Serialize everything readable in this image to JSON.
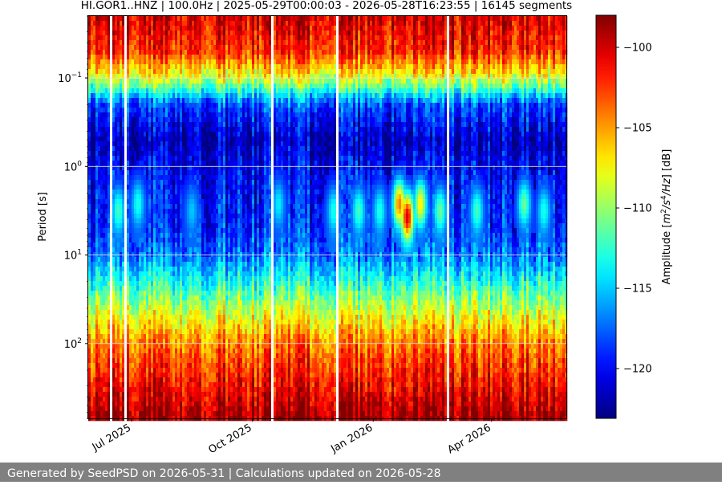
{
  "chart_data": {
    "type": "heatmap",
    "title": "HI.GOR1..HNZ | 100.0Hz | 2025-05-29T00:00:03 - 2026-05-28T16:23:55 | 16145 segments",
    "ylabel": "Period [s]",
    "y_scale": "log",
    "y_inverted": true,
    "ylim": [
      0.02,
      700
    ],
    "x_range": [
      "2025-05-29",
      "2026-05-28"
    ],
    "y_ticks": [
      {
        "value": 0.1,
        "base": "10",
        "exp": "−1"
      },
      {
        "value": 1,
        "base": "10",
        "exp": "0"
      },
      {
        "value": 10,
        "base": "10",
        "exp": "1"
      },
      {
        "value": 100,
        "base": "10",
        "exp": "2"
      }
    ],
    "x_ticks": [
      {
        "date": "2025-07-01",
        "label": "Jul 2025"
      },
      {
        "date": "2025-10-01",
        "label": "Oct 2025"
      },
      {
        "date": "2026-01-01",
        "label": "Jan 2026"
      },
      {
        "date": "2026-04-01",
        "label": "Apr 2026"
      }
    ],
    "colorbar": {
      "label_prefix": "Amplitude [",
      "label_m": "m",
      "label_sup2": "2",
      "label_mid": "/s",
      "label_sup4": "4",
      "label_hz": "/Hz",
      "label_suffix": "] [dB]",
      "range": [
        -123.1,
        -98
      ],
      "ticks": [
        -100,
        -105,
        -110,
        -115,
        -120
      ],
      "tick_labels": [
        "−100",
        "−105",
        "−110",
        "−115",
        "−120"
      ],
      "colormap": "jet"
    },
    "period_profile": [
      {
        "period": 0.02,
        "db": -100
      },
      {
        "period": 0.05,
        "db": -102
      },
      {
        "period": 0.1,
        "db": -108
      },
      {
        "period": 0.2,
        "db": -118
      },
      {
        "period": 0.5,
        "db": -121.5
      },
      {
        "period": 1,
        "db": -120
      },
      {
        "period": 2,
        "db": -119.5
      },
      {
        "period": 5,
        "db": -119
      },
      {
        "period": 10,
        "db": -117
      },
      {
        "period": 20,
        "db": -113
      },
      {
        "period": 40,
        "db": -109
      },
      {
        "period": 100,
        "db": -104
      },
      {
        "period": 300,
        "db": -101
      },
      {
        "period": 700,
        "db": -98.5
      }
    ],
    "microseism_events": [
      {
        "date": "2025-06-20",
        "period": 3,
        "db": -112
      },
      {
        "date": "2025-07-05",
        "period": 2.5,
        "db": -113
      },
      {
        "date": "2025-08-15",
        "period": 3,
        "db": -115
      },
      {
        "date": "2025-10-20",
        "period": 2.5,
        "db": -114
      },
      {
        "date": "2025-12-01",
        "period": 3,
        "db": -113
      },
      {
        "date": "2025-12-20",
        "period": 3,
        "db": -112
      },
      {
        "date": "2026-01-05",
        "period": 3,
        "db": -113
      },
      {
        "date": "2026-01-20",
        "period": 2.5,
        "db": -104
      },
      {
        "date": "2026-01-26",
        "period": 3.5,
        "db": -100
      },
      {
        "date": "2026-02-05",
        "period": 2.5,
        "db": -107
      },
      {
        "date": "2026-02-20",
        "period": 3,
        "db": -111
      },
      {
        "date": "2026-03-20",
        "period": 3,
        "db": -112
      },
      {
        "date": "2026-04-25",
        "period": 2.5,
        "db": -111
      },
      {
        "date": "2026-05-10",
        "period": 3,
        "db": -113
      }
    ]
  },
  "footer": {
    "text": "Generated by SeedPSD on 2026-05-31 | Calculations updated on 2026-05-28"
  }
}
